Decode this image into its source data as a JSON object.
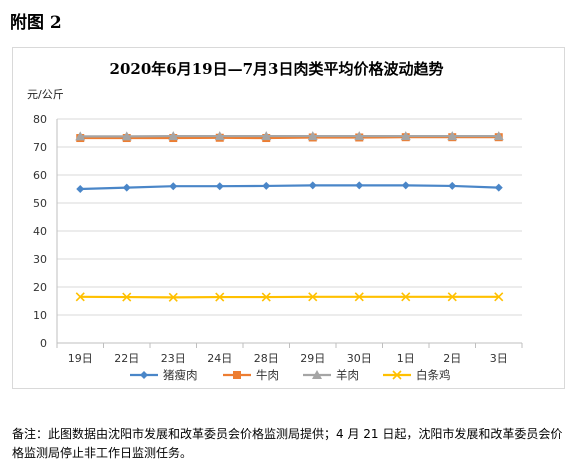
{
  "figure_label": "附图 2",
  "footnote": "备注：此图数据由沈阳市发展和改革委员会价格监测局提供；4 月 21 日起，沈阳市发展和改革委员会价格监测局停止非工作日监测任务。",
  "chart_data": {
    "type": "line",
    "title": "2020年6月19日—7月3日肉类平均价格波动趋势",
    "ylabel": "元/公斤",
    "xlabel": "",
    "ylim": [
      0,
      80
    ],
    "yticks": [
      0,
      10,
      20,
      30,
      40,
      50,
      60,
      70,
      80
    ],
    "grid": true,
    "legend_position": "bottom",
    "categories": [
      "19日",
      "22日",
      "23日",
      "24日",
      "28日",
      "29日",
      "30日",
      "1日",
      "2日",
      "3日"
    ],
    "series": [
      {
        "name": "猪瘦肉",
        "color": "#4a86c8",
        "marker": "diamond",
        "values": [
          55.0,
          55.5,
          56.0,
          56.0,
          56.1,
          56.3,
          56.3,
          56.3,
          56.1,
          55.5
        ]
      },
      {
        "name": "牛肉",
        "color": "#ed7d31",
        "marker": "square",
        "values": [
          73.2,
          73.2,
          73.2,
          73.3,
          73.2,
          73.4,
          73.4,
          73.5,
          73.5,
          73.5
        ]
      },
      {
        "name": "羊肉",
        "color": "#a5a5a5",
        "marker": "triangle",
        "values": [
          73.8,
          73.8,
          73.9,
          73.9,
          73.9,
          73.9,
          73.9,
          73.9,
          73.9,
          73.9
        ]
      },
      {
        "name": "白条鸡",
        "color": "#ffc000",
        "marker": "x",
        "values": [
          16.5,
          16.4,
          16.3,
          16.4,
          16.4,
          16.5,
          16.5,
          16.5,
          16.5,
          16.5
        ]
      }
    ]
  }
}
